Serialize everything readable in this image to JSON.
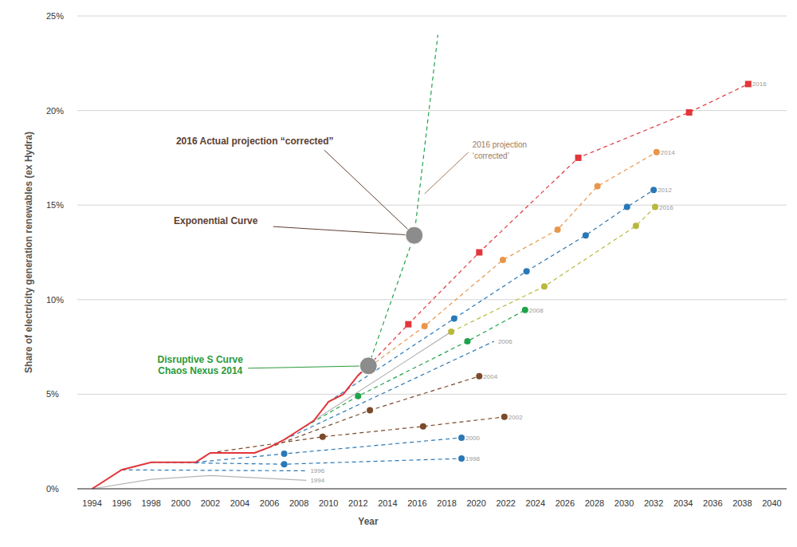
{
  "chart_data": {
    "type": "line",
    "x_label": "Year",
    "y_label": "Share of electricity generation renewables (ex Hydra)",
    "xlim": [
      1993,
      2041
    ],
    "xticks": [
      1994,
      1996,
      1998,
      2000,
      2002,
      2004,
      2006,
      2008,
      2010,
      2012,
      2014,
      2016,
      2018,
      2020,
      2022,
      2024,
      2026,
      2028,
      2030,
      2032,
      2034,
      2036,
      2038,
      2040
    ],
    "ylim": [
      0,
      25
    ],
    "yticks": [
      {
        "value": 0,
        "label": "0%"
      },
      {
        "value": 5,
        "label": "5%"
      },
      {
        "value": 10,
        "label": "10%"
      },
      {
        "value": 15,
        "label": "15%"
      },
      {
        "value": 20,
        "label": "20%"
      },
      {
        "value": 25,
        "label": "25%"
      }
    ],
    "grid": "y",
    "series": [
      {
        "color": "#e2363b",
        "line_style": "solid",
        "marker": "none",
        "x": [
          1994,
          1996,
          1998,
          2001,
          2002,
          2005,
          2006,
          2007,
          2008,
          2009,
          2010,
          2011,
          2012,
          2012.7
        ],
        "values": [
          0,
          1.0,
          1.4,
          1.4,
          1.9,
          1.9,
          2.2,
          2.6,
          3.1,
          3.6,
          4.6,
          5.0,
          6.0,
          6.5
        ]
      },
      {
        "name": "1994",
        "color": "#b5b5b5",
        "line_style": "solid",
        "marker": "none",
        "x": [
          1994,
          1998,
          2002,
          2008.5
        ],
        "values": [
          0,
          0.5,
          0.7,
          0.45
        ]
      },
      {
        "name": "1996",
        "color": "#2a78b5",
        "line_style": "dashed",
        "marker": "none",
        "x": [
          1996,
          2008.5
        ],
        "values": [
          1.0,
          0.95
        ]
      },
      {
        "name": "1998",
        "color": "#2a78b5",
        "line_style": "dashed",
        "marker": "circle",
        "x": [
          1998,
          2007,
          2019
        ],
        "values": [
          1.4,
          1.3,
          1.6
        ]
      },
      {
        "name": "2000",
        "color": "#2a78b5",
        "line_style": "dashed",
        "marker": "circle",
        "x": [
          2001,
          2007,
          2019
        ],
        "values": [
          1.4,
          1.85,
          2.7
        ]
      },
      {
        "name": "2002",
        "color": "#7b4a2b",
        "line_style": "dashed",
        "marker": "circle",
        "x": [
          2002,
          2009.6,
          2016.4,
          2021.9
        ],
        "values": [
          1.9,
          2.75,
          3.3,
          3.8
        ]
      },
      {
        "name": "2004",
        "color": "#7b4a2b",
        "line_style": "dashed",
        "marker": "circle",
        "x": [
          2005,
          2012.8,
          2020.2
        ],
        "values": [
          1.9,
          4.15,
          5.95
        ]
      },
      {
        "name": "2006",
        "color": "#2a78b5",
        "line_style": "dashed",
        "marker": "none",
        "x": [
          2007,
          2021.2
        ],
        "values": [
          2.6,
          7.8
        ]
      },
      {
        "color": "#b5b5b5",
        "line_style": "solid",
        "marker": "none",
        "x": [
          2008,
          2018.3
        ],
        "values": [
          3.1,
          8.3
        ]
      },
      {
        "name": "2008",
        "color": "#1fa24a",
        "line_style": "dashed",
        "marker": "circle",
        "x": [
          2008,
          2012,
          2019.4,
          2023.3
        ],
        "values": [
          3.1,
          4.9,
          7.8,
          9.45
        ]
      },
      {
        "name": "2016",
        "color": "#b8b83e",
        "line_style": "dashed",
        "marker": "circle",
        "x": [
          2018.3,
          2024.6,
          2030.8,
          2032.1
        ],
        "values": [
          8.3,
          10.7,
          13.9,
          14.9
        ]
      },
      {
        "name": "2012",
        "color": "#2a78b5",
        "line_style": "dashed",
        "marker": "circle",
        "x": [
          2010,
          2018.5,
          2023.4,
          2027.4,
          2030.2,
          2032.0
        ],
        "values": [
          4.6,
          9.0,
          11.5,
          13.4,
          14.9,
          15.8
        ]
      },
      {
        "name": "2014",
        "color": "#e8964a",
        "line_style": "dashed",
        "marker": "circle",
        "x": [
          2012,
          2016.5,
          2021.8,
          2025.5,
          2028.2,
          2032.2
        ],
        "values": [
          6.0,
          8.6,
          12.1,
          13.7,
          16.0,
          17.8
        ]
      },
      {
        "name": "2016",
        "color": "#e2363b",
        "line_style": "dashed",
        "marker": "square",
        "x": [
          2012.7,
          2015.4,
          2020.2,
          2026.9,
          2034.4,
          2038.4
        ],
        "values": [
          6.5,
          8.7,
          12.5,
          17.5,
          19.9,
          21.4
        ]
      },
      {
        "color": "#1fa24a",
        "line_style": "dashed",
        "marker": "none",
        "x": [
          2012.7,
          2015.8,
          2017.4
        ],
        "values": [
          6.5,
          13.4,
          24.0
        ]
      }
    ],
    "annotations": [
      {
        "text": "2016 Actual projection “corrected”",
        "x": 2015.8,
        "y": 13.4,
        "color": "#5c4033",
        "marker": "circle"
      },
      {
        "text": "Exponential Curve",
        "x": 2015.8,
        "y": 13.4,
        "color": "#5c4033",
        "marker": "circle"
      },
      {
        "text": [
          "Disruptive S Curve",
          "Chaos Nexus 2014"
        ],
        "x": 2012.7,
        "y": 6.5,
        "color": "#2a9a3a",
        "marker": "circle"
      },
      {
        "text": [
          "2016 projection",
          "‘corrected’"
        ],
        "x": 2016.5,
        "y": 15.6,
        "color": "#a0785a",
        "marker": "none"
      }
    ]
  }
}
